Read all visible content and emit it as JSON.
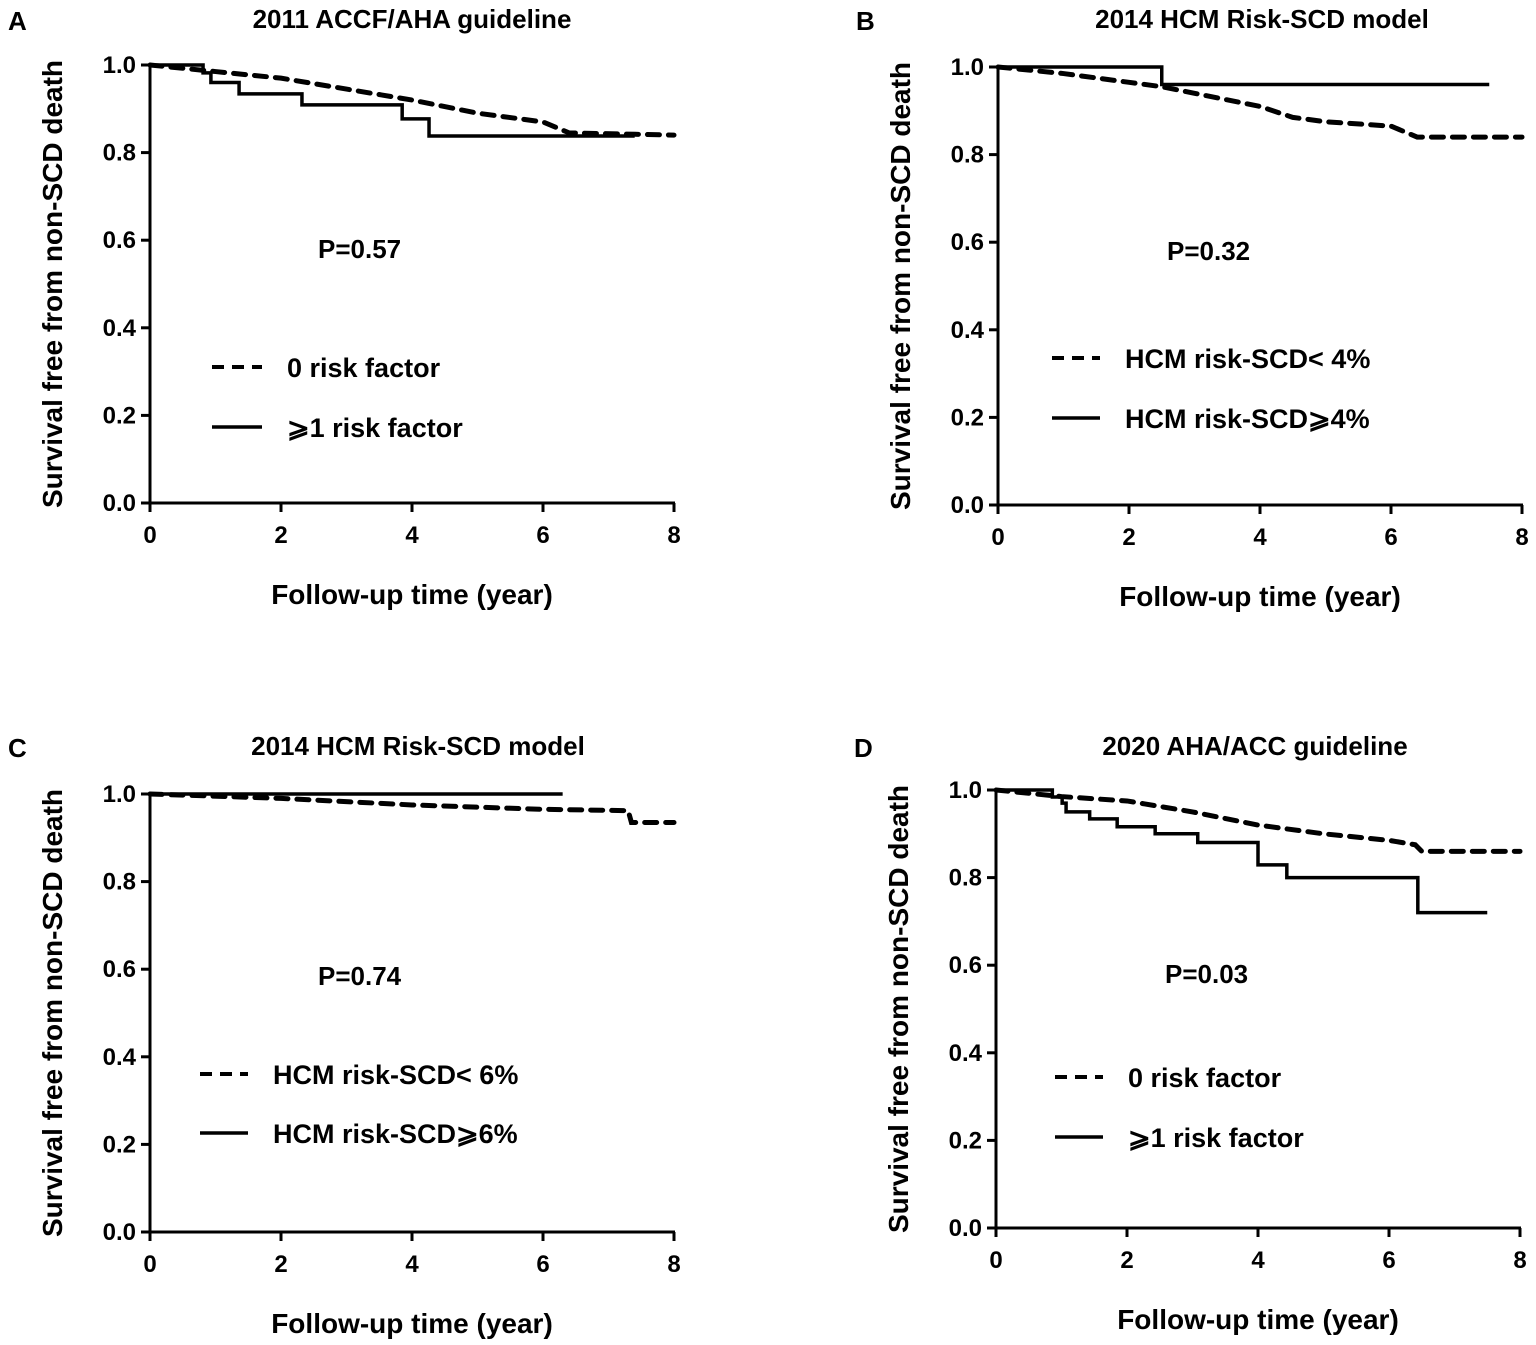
{
  "chart_data": [
    {
      "type": "line",
      "panel_label": "A",
      "title": "2011  ACCF/AHA guideline",
      "xlabel": "Follow-up time (year)",
      "ylabel": "Survival free from non-SCD death",
      "xlim": [
        0,
        8
      ],
      "ylim": [
        0,
        1.0
      ],
      "xticks": [
        "0",
        "2",
        "4",
        "6",
        "8"
      ],
      "yticks": [
        "0.0",
        "0.2",
        "0.4",
        "0.6",
        "0.8",
        "1.0"
      ],
      "annotation": "P=0.57",
      "legend_position": "center-left",
      "series": [
        {
          "name": "0 risk factor",
          "style": "dashed",
          "step": false,
          "x": [
            0,
            1,
            2,
            3,
            4,
            5,
            6,
            6.4,
            8
          ],
          "y": [
            1,
            0.985,
            0.97,
            0.945,
            0.92,
            0.89,
            0.87,
            0.845,
            0.84
          ]
        },
        {
          "name": "⩾1 risk factor",
          "style": "solid",
          "step": true,
          "x": [
            0,
            0.81,
            0.93,
            1.36,
            2.32,
            3.85,
            4.26,
            7.4
          ],
          "y": [
            1,
            0.982,
            0.96,
            0.934,
            0.909,
            0.877,
            0.838,
            0.838
          ]
        }
      ]
    },
    {
      "type": "line",
      "panel_label": "B",
      "title": "2014 HCM Risk-SCD model",
      "xlabel": "Follow-up time (year)",
      "ylabel": "Survival free from non-SCD death",
      "xlim": [
        0,
        8
      ],
      "ylim": [
        0,
        1.0
      ],
      "xticks": [
        "0",
        "2",
        "4",
        "6",
        "8"
      ],
      "yticks": [
        "0.0",
        "0.2",
        "0.4",
        "0.6",
        "0.8",
        "1.0"
      ],
      "annotation": "P=0.32",
      "legend_position": "center-left",
      "series": [
        {
          "name": "HCM risk-SCD< 4%",
          "style": "dashed",
          "step": false,
          "x": [
            0,
            1,
            2,
            2.5,
            3,
            4,
            4.5,
            5,
            6,
            6.4,
            8
          ],
          "y": [
            1,
            0.985,
            0.965,
            0.955,
            0.94,
            0.91,
            0.885,
            0.875,
            0.865,
            0.84,
            0.84
          ]
        },
        {
          "name": "HCM risk-SCD⩾4%",
          "style": "solid",
          "step": true,
          "x": [
            0,
            2.5,
            7.5
          ],
          "y": [
            1,
            0.96,
            0.96
          ]
        }
      ]
    },
    {
      "type": "line",
      "panel_label": "C",
      "title": "2014 HCM Risk-SCD model",
      "xlabel": "Follow-up time (year)",
      "ylabel": "Survival free from non-SCD death",
      "xlim": [
        0,
        8
      ],
      "ylim": [
        0,
        1.0
      ],
      "xticks": [
        "0",
        "2",
        "4",
        "6",
        "8"
      ],
      "yticks": [
        "0.0",
        "0.2",
        "0.4",
        "0.6",
        "0.8",
        "1.0"
      ],
      "annotation": "P=0.74",
      "legend_position": "center-left",
      "series": [
        {
          "name": "HCM risk-SCD< 6%",
          "style": "dashed",
          "step": false,
          "x": [
            0,
            2,
            4,
            5,
            6,
            7.3,
            7.35,
            8
          ],
          "y": [
            1,
            0.99,
            0.975,
            0.97,
            0.965,
            0.962,
            0.935,
            0.935
          ]
        },
        {
          "name": "HCM risk-SCD⩾6%",
          "style": "solid",
          "step": true,
          "x": [
            0,
            6.3
          ],
          "y": [
            1,
            1
          ]
        }
      ]
    },
    {
      "type": "line",
      "panel_label": "D",
      "title": "2020 AHA/ACC guideline",
      "xlabel": "Follow-up time (year)",
      "ylabel": "Survival free from non-SCD death",
      "xlim": [
        0,
        8
      ],
      "ylim": [
        0,
        1.0
      ],
      "xticks": [
        "0",
        "2",
        "4",
        "6",
        "8"
      ],
      "yticks": [
        "0.0",
        "0.2",
        "0.4",
        "0.6",
        "0.8",
        "1.0"
      ],
      "annotation": "P=0.03",
      "legend_position": "center-left",
      "series": [
        {
          "name": "0 risk factor",
          "style": "dashed",
          "step": false,
          "x": [
            0,
            1,
            2,
            3,
            4,
            5,
            6,
            6.4,
            6.5,
            8
          ],
          "y": [
            1,
            0.985,
            0.975,
            0.95,
            0.92,
            0.9,
            0.885,
            0.875,
            0.86,
            0.86
          ]
        },
        {
          "name": "⩾1 risk factor",
          "style": "solid",
          "step": true,
          "x": [
            0,
            0.86,
            1.01,
            1.07,
            1.43,
            1.85,
            2.43,
            3.08,
            4.0,
            4.44,
            6.44,
            7.5
          ],
          "y": [
            1,
            0.984,
            0.97,
            0.95,
            0.934,
            0.916,
            0.9,
            0.88,
            0.829,
            0.8,
            0.72,
            0.72
          ]
        }
      ]
    }
  ]
}
